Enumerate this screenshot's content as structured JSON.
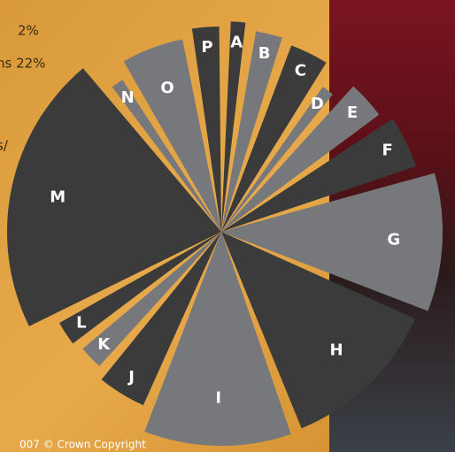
{
  "chart_data": {
    "type": "pie",
    "categories": [
      "A",
      "B",
      "C",
      "D",
      "E",
      "F",
      "G",
      "H",
      "I",
      "J",
      "K",
      "L",
      "M",
      "N",
      "O",
      "P"
    ],
    "values": [
      2,
      3,
      4,
      2,
      4,
      5,
      11,
      13,
      12,
      5,
      3,
      3,
      22,
      2,
      6,
      3
    ],
    "colors": [
      "#3b3b3b",
      "#77787b",
      "#3b3b3b",
      "#77787b",
      "#77787b",
      "#3b3b3b",
      "#77787b",
      "#3b3b3b",
      "#77787b",
      "#3b3b3b",
      "#77787b",
      "#3b3b3b",
      "#3b3b3b",
      "#77787b",
      "#77787b",
      "#3b3b3b"
    ]
  },
  "side_texts": [
    "2%",
    "ns 22%",
    "s/",
    "007 © Crown Copyright"
  ]
}
